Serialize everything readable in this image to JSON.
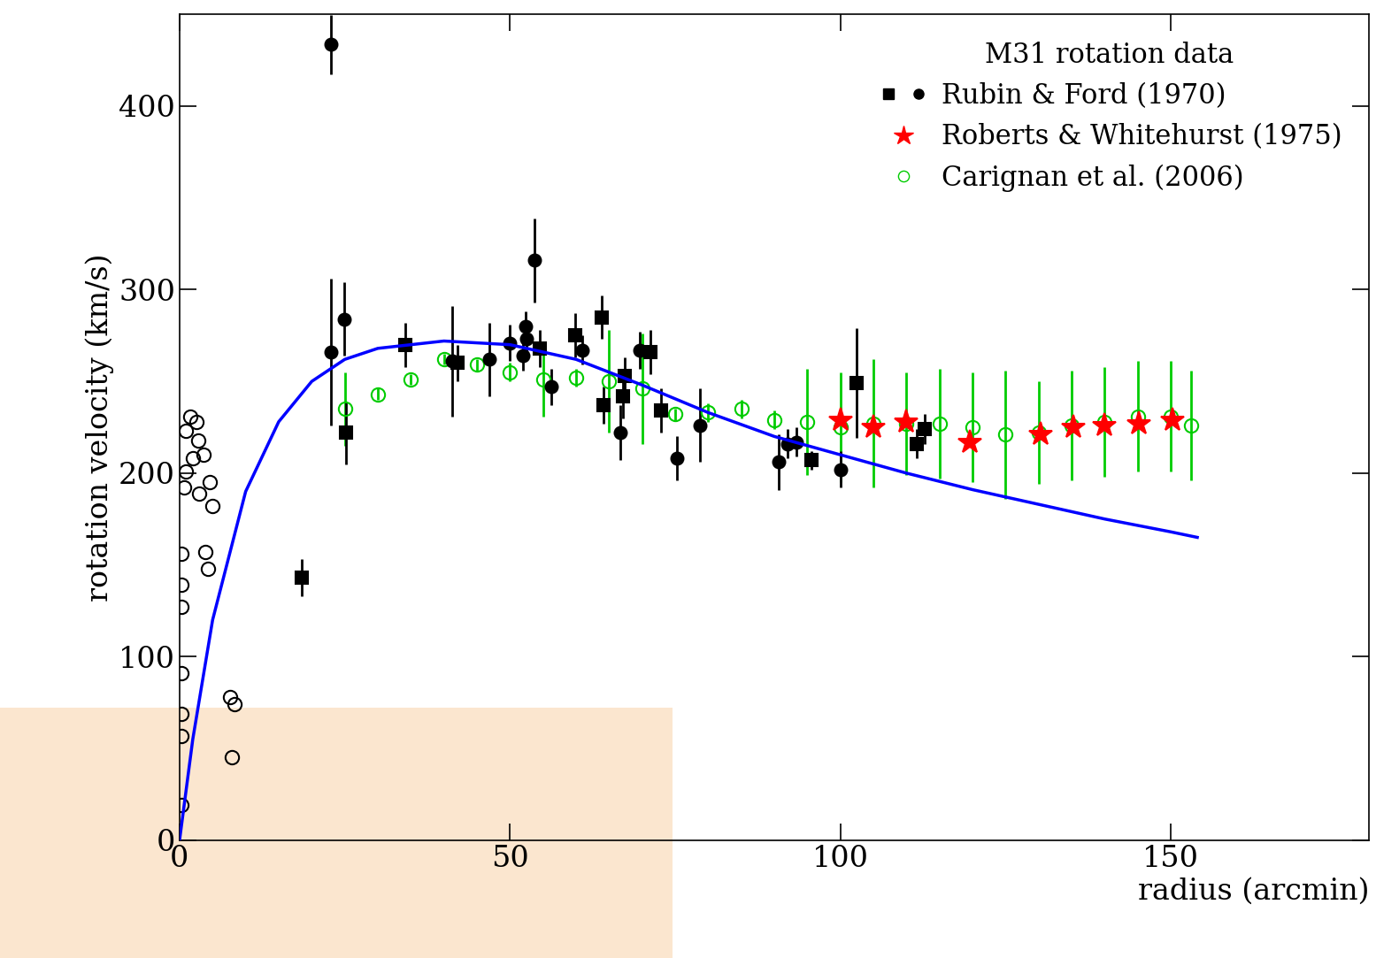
{
  "chart_data": {
    "type": "scatter",
    "title": "M31 rotation data",
    "x_label": "radius (arcmin)",
    "y_label": "rotation velocity (km/s)",
    "xlim": [
      0,
      180
    ],
    "ylim": [
      0,
      450
    ],
    "xticks": [
      0,
      50,
      100,
      150
    ],
    "yticks": [
      0,
      100,
      200,
      300,
      400
    ],
    "legend": "upper right",
    "series": [
      {
        "type": "line",
        "color": "#0000ff",
        "line_style": "solid",
        "x": [
          0,
          2,
          5,
          10,
          15,
          20,
          25,
          30,
          40,
          50,
          60,
          70,
          80,
          90,
          100,
          110,
          120,
          130,
          140,
          150,
          154
        ],
        "values": [
          0,
          55,
          120,
          190,
          228,
          250,
          262,
          268,
          272,
          270,
          262,
          248,
          233,
          220,
          210,
          200,
          191,
          183,
          175,
          168,
          165
        ]
      },
      {
        "type": "scatter",
        "color": "#000000",
        "marker": "open_circle",
        "x": [
          1.6,
          2.5,
          0.9,
          2.8,
          2.0,
          3.6,
          4.5,
          0.9,
          0.7,
          2.9,
          4.9,
          3.9,
          4.3,
          0.3,
          0.3,
          0.3,
          0.3,
          0.3,
          0.3,
          0.3,
          7.6,
          8.3,
          7.9
        ],
        "values": [
          231,
          228,
          223,
          218,
          208,
          210,
          195,
          201,
          192,
          189,
          182,
          157,
          148,
          156,
          139,
          127,
          91,
          69,
          57,
          19,
          78,
          74,
          45
        ]
      },
      {
        "name": "Carignan et al. (2006)",
        "type": "scatter",
        "color": "#00cc00",
        "marker": "open_circle",
        "x": [
          25,
          30,
          35,
          40,
          45,
          50,
          55,
          60,
          65,
          70,
          75,
          80,
          85,
          90,
          95,
          100,
          105,
          110,
          115,
          120,
          125,
          130,
          135,
          140,
          145,
          150,
          153
        ],
        "values": [
          235,
          243,
          251,
          262,
          259,
          255,
          251,
          252,
          250,
          246,
          232,
          233,
          235,
          229,
          228,
          225,
          227,
          227,
          227,
          225,
          221,
          222,
          226,
          228,
          231,
          231,
          226
        ],
        "errors": [
          20,
          3,
          3,
          3,
          3,
          5,
          20,
          5,
          28,
          30,
          3,
          5,
          5,
          5,
          29,
          30,
          35,
          28,
          30,
          30,
          35,
          28,
          30,
          30,
          30,
          30,
          30
        ]
      },
      {
        "name": "Roberts & Whitehurst (1975)",
        "type": "scatter",
        "color": "#ff0000",
        "marker": "star",
        "x": [
          100,
          105,
          110,
          119.6,
          130.3,
          135.2,
          140,
          145.2,
          150.3
        ],
        "values": [
          229,
          225,
          228,
          217,
          221,
          225,
          226,
          227,
          229
        ]
      },
      {
        "name": "Rubin & Ford (1970)",
        "type": "scatter",
        "color": "#000000",
        "groups": [
          {
            "marker": "square",
            "x": [
              18.5,
              25.2,
              34.1,
              42.1,
              54.5,
              59.9,
              63.9,
              64.1,
              67.1,
              67.3,
              71.3,
              72.9,
              95.6,
              102.4,
              111.6,
              112.7
            ],
            "values": [
              143,
              222,
              270,
              260,
              268,
              275,
              285,
              237,
              242,
              253,
              266,
              234,
              207,
              249,
              216,
              224
            ],
            "errors": [
              10,
              17,
              12,
              10,
              10,
              12,
              12,
              10,
              12,
              10,
              12,
              12,
              5,
              30,
              8,
              8
            ]
          },
          {
            "marker": "circle",
            "x": [
              22.9,
              22.9,
              24.9,
              41.2,
              46.9,
              50.0,
              52.0,
              52.3,
              52.5,
              53.7,
              56.3,
              60.9,
              66.7,
              69.7,
              75.3,
              78.7,
              90.7,
              92.0,
              93.3,
              100.0
            ],
            "values": [
              433.5,
              266,
              284,
              261,
              262,
              271,
              264,
              280,
              273,
              316,
              247,
              267,
              222,
              267,
              208,
              226,
              206,
              216,
              217,
              202
            ],
            "errors": [
              16,
              40,
              20,
              30,
              20,
              10,
              8,
              8,
              8,
              23,
              10,
              8,
              15,
              10,
              12,
              20,
              15,
              8,
              8,
              10
            ]
          }
        ]
      }
    ]
  }
}
